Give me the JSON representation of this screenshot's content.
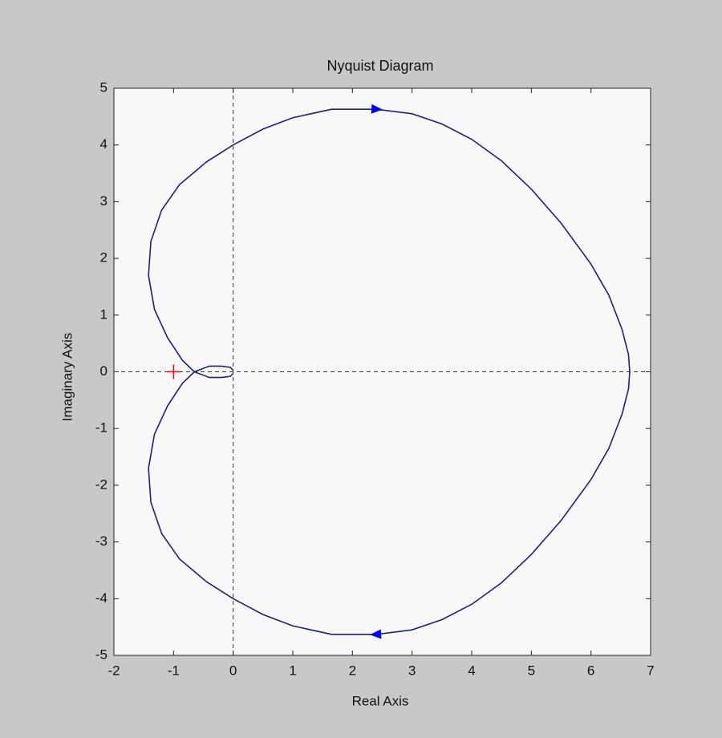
{
  "chart_data": {
    "type": "line",
    "title": "Nyquist Diagram",
    "xlabel": "Real Axis",
    "ylabel": "Imaginary Axis",
    "x": [
      0,
      -0.05,
      -0.2,
      -0.4,
      -0.55,
      -0.65,
      -0.85,
      -1.1,
      -1.32,
      -1.42,
      -1.38,
      -1.2,
      -0.9,
      -0.45,
      0,
      0.5,
      1,
      1.65,
      2.4,
      3,
      3.5,
      4,
      4.5,
      5,
      5.5,
      6,
      6.3,
      6.52,
      6.63,
      6.65,
      6.63,
      6.52,
      6.3,
      6,
      5.5,
      5,
      4.5,
      4,
      3.5,
      3,
      2.4,
      1.65,
      1,
      0.5,
      0,
      -0.45,
      -0.9,
      -1.2,
      -1.38,
      -1.42,
      -1.32,
      -1.1,
      -0.85,
      -0.65,
      -0.55,
      -0.4,
      -0.2,
      -0.05,
      0
    ],
    "series": [
      {
        "color": "#1a237e",
        "values": [
          -0.03,
          -0.08,
          -0.1,
          -0.1,
          -0.04,
          0,
          0.2,
          0.6,
          1.1,
          1.7,
          2.3,
          2.85,
          3.3,
          3.7,
          4.0,
          4.28,
          4.48,
          4.63,
          4.63,
          4.55,
          4.37,
          4.1,
          3.72,
          3.22,
          2.62,
          1.9,
          1.35,
          0.75,
          0.3,
          0,
          -0.3,
          -0.75,
          -1.35,
          -1.9,
          -2.62,
          -3.22,
          -3.72,
          -4.1,
          -4.37,
          -4.55,
          -4.63,
          -4.63,
          -4.48,
          -4.28,
          -4.0,
          -3.7,
          -3.3,
          -2.85,
          -2.3,
          -1.7,
          -1.1,
          -0.6,
          -0.2,
          0,
          0.04,
          0.1,
          0.1,
          0.08,
          0.03
        ]
      }
    ],
    "arrow_color": "#0000ff",
    "markers": [
      {
        "x": -1,
        "y": 0,
        "color": "#ff0000"
      }
    ],
    "xlim": [
      -2,
      7
    ],
    "xticks": [
      -2,
      -1,
      0,
      1,
      2,
      3,
      4,
      5,
      6,
      7
    ],
    "ylim": [
      -5,
      5
    ],
    "yticks": [
      -5,
      -4,
      -3,
      -2,
      -1,
      0,
      1,
      2,
      3,
      4,
      5
    ],
    "zero_lines": true
  }
}
